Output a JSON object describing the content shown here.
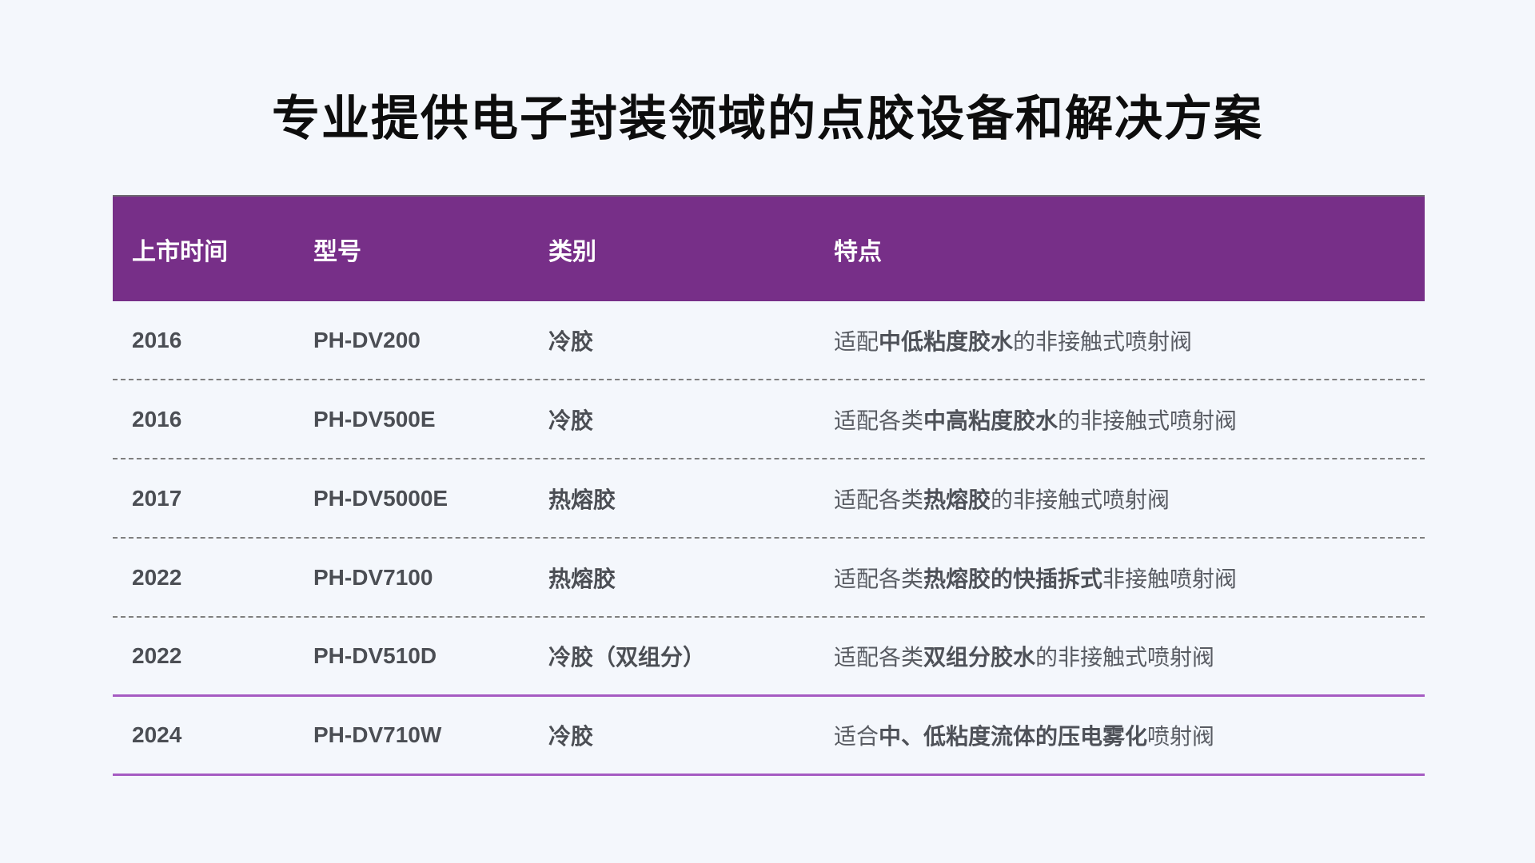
{
  "title": "专业提供电子封装领域的点胶设备和解决方案",
  "colors": {
    "background": "#F4F7FC",
    "header_bg": "#772F88",
    "accent_line": "#A55BC2",
    "dashed_divider": "#7F7F7F"
  },
  "table": {
    "columns": [
      "上市时间",
      "型号",
      "类别",
      "特点"
    ],
    "rows": [
      {
        "year": "2016",
        "model": "PH-DV200",
        "category": "冷胶",
        "feature": [
          {
            "t": "适配",
            "b": false
          },
          {
            "t": "中低粘度胶水",
            "b": true
          },
          {
            "t": "的非接触式喷射阀",
            "b": false
          }
        ],
        "divider": "dashed"
      },
      {
        "year": "2016",
        "model": "PH-DV500E",
        "category": "冷胶",
        "feature": [
          {
            "t": "适配各类",
            "b": false
          },
          {
            "t": "中高粘度胶水",
            "b": true
          },
          {
            "t": "的非接触式喷射阀",
            "b": false
          }
        ],
        "divider": "dashed"
      },
      {
        "year": "2017",
        "model": "PH-DV5000E",
        "category": "热熔胶",
        "feature": [
          {
            "t": "适配各类",
            "b": false
          },
          {
            "t": "热熔胶",
            "b": true
          },
          {
            "t": "的非接触式喷射阀",
            "b": false
          }
        ],
        "divider": "dashed"
      },
      {
        "year": "2022",
        "model": "PH-DV7100",
        "category": "热熔胶",
        "feature": [
          {
            "t": "适配各类",
            "b": false
          },
          {
            "t": "热熔胶的快插拆式",
            "b": true
          },
          {
            "t": "非接触喷射阀",
            "b": false
          }
        ],
        "divider": "dashed"
      },
      {
        "year": "2022",
        "model": "PH-DV510D",
        "category": "冷胶（双组分）",
        "feature": [
          {
            "t": "适配各类",
            "b": false
          },
          {
            "t": "双组分胶水",
            "b": true
          },
          {
            "t": "的非接触式喷射阀",
            "b": false
          }
        ],
        "divider": "solid"
      },
      {
        "year": "2024",
        "model": "PH-DV710W",
        "category": "冷胶",
        "feature": [
          {
            "t": "适合",
            "b": false
          },
          {
            "t": "中、低粘度流体的压电雾化",
            "b": true
          },
          {
            "t": "喷射阀",
            "b": false
          }
        ],
        "divider": "solid"
      }
    ]
  }
}
